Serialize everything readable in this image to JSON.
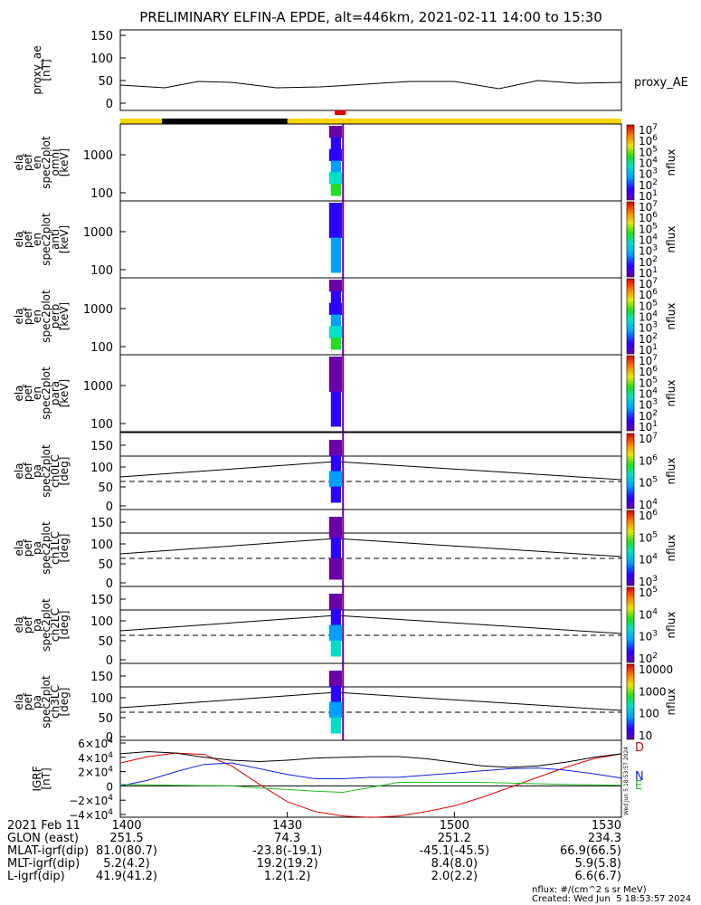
{
  "title": "PRELIMINARY ELFIN-A EPDE, alt=446km, 2021-02-11 14:00 to 15:30",
  "chart_data": [
    {
      "type": "line",
      "ylabel": [
        "proxy_ae",
        "[nT]"
      ],
      "yticks": [
        "150",
        "100",
        "50",
        "0"
      ],
      "ylim": [
        0,
        150
      ],
      "series": [
        {
          "name": "proxy_AE",
          "color": "#000000",
          "x": [
            0,
            8,
            14,
            20,
            28,
            36,
            44,
            52,
            60,
            68,
            75,
            82,
            90
          ],
          "y": [
            40,
            34,
            48,
            46,
            34,
            36,
            42,
            48,
            48,
            32,
            50,
            44,
            46
          ]
        }
      ]
    },
    {
      "type": "heatmap",
      "panels": [
        {
          "ylabel": [
            "ela",
            "pef",
            "en",
            "spec2plot",
            "omni",
            "[keV]"
          ],
          "yticks": [
            "1000",
            "100"
          ],
          "cbar_ticks": [
            "10^7",
            "10^6",
            "10^5",
            "10^4",
            "10^3",
            "10^2",
            "10^1"
          ],
          "cbar_label": "nflux"
        },
        {
          "ylabel": [
            "ela",
            "pef",
            "en",
            "spec2plot",
            "anti",
            "[keV]"
          ],
          "yticks": [
            "1000",
            "100"
          ],
          "cbar_ticks": [
            "10^7",
            "10^6",
            "10^5",
            "10^4",
            "10^3",
            "10^2",
            "10^1"
          ],
          "cbar_label": "nflux"
        },
        {
          "ylabel": [
            "ela",
            "pef",
            "en",
            "spec2plot",
            "perp",
            "[keV]"
          ],
          "yticks": [
            "1000",
            "100"
          ],
          "cbar_ticks": [
            "10^7",
            "10^6",
            "10^5",
            "10^4",
            "10^3",
            "10^2",
            "10^1"
          ],
          "cbar_label": "nflux"
        },
        {
          "ylabel": [
            "ela",
            "pef",
            "en",
            "spec2plot",
            "para",
            "[keV]"
          ],
          "yticks": [
            "1000",
            "100"
          ],
          "cbar_ticks": [
            "10^7",
            "10^6",
            "10^5",
            "10^4",
            "10^3",
            "10^2",
            "10^1"
          ],
          "cbar_label": "nflux"
        },
        {
          "ylabel": [
            "ela",
            "pef",
            "pa",
            "spec2plot",
            "ch0LC",
            "[deg]"
          ],
          "yticks": [
            "150",
            "100",
            "50",
            "0"
          ],
          "cbar_ticks": [
            "10^7",
            "10^6",
            "10^5",
            "10^4"
          ],
          "cbar_label": "nflux"
        },
        {
          "ylabel": [
            "ela",
            "pef",
            "pa",
            "spec2plot",
            "ch1LC",
            "[deg]"
          ],
          "yticks": [
            "150",
            "100",
            "50",
            "0"
          ],
          "cbar_ticks": [
            "10^6",
            "10^5",
            "10^4",
            "10^3"
          ],
          "cbar_label": "nflux"
        },
        {
          "ylabel": [
            "ela",
            "pef",
            "pa",
            "spec2plot",
            "ch2LC",
            "[deg]"
          ],
          "yticks": [
            "150",
            "100",
            "50",
            "0"
          ],
          "cbar_ticks": [
            "10^5",
            "10^4",
            "10^3",
            "10^2"
          ],
          "cbar_label": "nflux"
        },
        {
          "ylabel": [
            "ela",
            "pef",
            "pa",
            "spec2plot",
            "ch3LC",
            "[deg]"
          ],
          "yticks": [
            "150",
            "100",
            "50",
            "0"
          ],
          "cbar_ticks": [
            "10000",
            "1000",
            "100",
            "10"
          ],
          "cbar_label": "nflux"
        }
      ]
    },
    {
      "type": "line",
      "ylabel": [
        "IGRF",
        "[nT]"
      ],
      "yticks": [
        "6×10^4",
        "4×10^4",
        "2×10^4",
        "0",
        "−2×10^4",
        "−4×10^4"
      ],
      "ylim": [
        -40000,
        60000
      ],
      "series": [
        {
          "name": "D",
          "color": "#e00000",
          "x": [
            0,
            5,
            10,
            15,
            20,
            25,
            30,
            35,
            40,
            45,
            50,
            55,
            60,
            65,
            70,
            75,
            80,
            85,
            90
          ],
          "y": [
            32000,
            41000,
            46000,
            44000,
            28000,
            2000,
            -22000,
            -36000,
            -42000,
            -44000,
            -42000,
            -36000,
            -28000,
            -16000,
            -2000,
            12000,
            26000,
            38000,
            45000
          ]
        },
        {
          "name": "N",
          "color": "#1020e0",
          "x": [
            0,
            5,
            10,
            15,
            20,
            25,
            30,
            35,
            40,
            45,
            50,
            55,
            60,
            65,
            70,
            75,
            80,
            85,
            90
          ],
          "y": [
            0,
            8000,
            20000,
            30000,
            32000,
            24000,
            16000,
            10000,
            10000,
            12000,
            12000,
            15000,
            18000,
            21000,
            24000,
            25000,
            22000,
            17000,
            11000
          ]
        },
        {
          "name": "E",
          "color": "#20c020",
          "x": [
            0,
            5,
            10,
            15,
            20,
            25,
            30,
            35,
            40,
            45,
            50,
            55,
            60,
            65,
            70,
            75,
            80,
            85,
            90
          ],
          "y": [
            2000,
            1500,
            1000,
            500,
            0,
            -3000,
            -5000,
            -7500,
            -9000,
            -2000,
            5000,
            5000,
            5000,
            5000,
            4000,
            3000,
            2000,
            1500,
            1000
          ]
        },
        {
          "name": "",
          "color": "#000000",
          "x": [
            0,
            5,
            10,
            15,
            20,
            25,
            30,
            35,
            40,
            45,
            50,
            55,
            60,
            65,
            70,
            75,
            80,
            85,
            90
          ],
          "y": [
            45000,
            48000,
            46000,
            40000,
            36000,
            34000,
            36000,
            39000,
            40000,
            41000,
            41000,
            38000,
            33000,
            28000,
            26000,
            28000,
            33000,
            40000,
            45000
          ]
        }
      ]
    }
  ],
  "colorbar_labels": [
    "D",
    "N",
    "E"
  ],
  "footer": {
    "rows": [
      {
        "label": "2021 Feb 11",
        "values": [
          "1400",
          "1430",
          "1500",
          "1530"
        ]
      },
      {
        "label": "GLON (east)",
        "values": [
          "251.5",
          "74.3",
          "251.2",
          "234.3"
        ]
      },
      {
        "label": "MLAT-igrf(dip)",
        "values": [
          "81.0(80.7)",
          "-23.8(-19.1)",
          "-45.1(-45.5)",
          "66.9(66.5)"
        ]
      },
      {
        "label": "MLT-igrf(dip)",
        "values": [
          "5.2(4.2)",
          "19.2(19.2)",
          "8.4(8.0)",
          "5.9(5.8)"
        ]
      },
      {
        "label": "L-igrf(dip)",
        "values": [
          "41.9(41.2)",
          "1.2(1.2)",
          "2.0(2.2)",
          "6.6(6.7)"
        ]
      }
    ],
    "units": "nflux: #/(cm^2 s sr MeV)",
    "created": "Created: Wed Jun  5 18:53:57 2024",
    "side_stamp": "Wed Jun  5 18:53:57 2024"
  }
}
